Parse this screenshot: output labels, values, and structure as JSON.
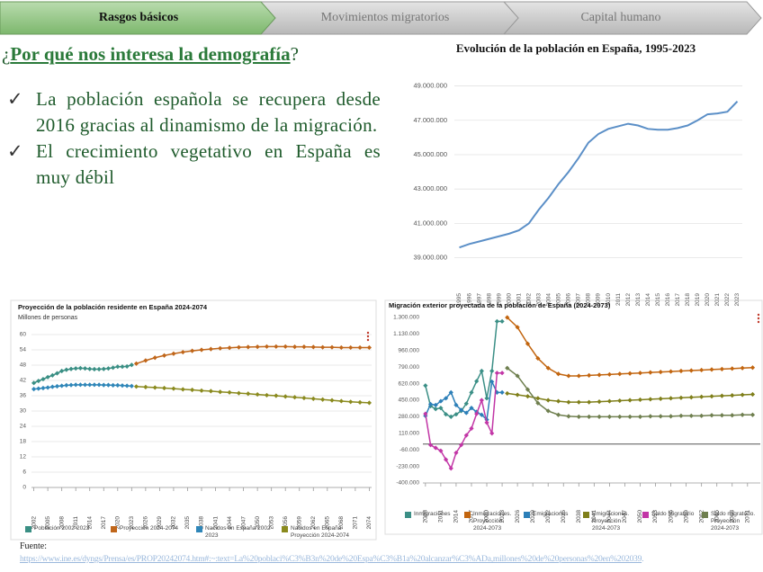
{
  "nav": [
    "Rasgos básicos",
    "Movimientos migratorios",
    "Capital humano"
  ],
  "heading": {
    "open": "¿",
    "text": "Por qué nos interesa la demografía",
    "close": "?"
  },
  "bullets": [
    "La población española se recupera desde 2016 gracias al dinamismo de la migración.",
    "El crecimiento vegetativo en España es muy débil"
  ],
  "chart_data": [
    {
      "type": "line",
      "title": "Evolución de la población en España, 1995-2023",
      "categories": [
        "1995",
        "1996",
        "1997",
        "1998",
        "1999",
        "2000",
        "2001",
        "2002",
        "2003",
        "2004",
        "2005",
        "2006",
        "2007",
        "2008",
        "2009",
        "2010",
        "2011",
        "2012",
        "2013",
        "2014",
        "2015",
        "2016",
        "2017",
        "2018",
        "2019",
        "2020",
        "2021",
        "2022",
        "2023"
      ],
      "values": [
        39600000,
        39800000,
        39950000,
        40100000,
        40250000,
        40400000,
        40600000,
        41000000,
        41800000,
        42500000,
        43300000,
        44000000,
        44800000,
        45700000,
        46200000,
        46500000,
        46650000,
        46800000,
        46700000,
        46500000,
        46450000,
        46450000,
        46550000,
        46700000,
        47000000,
        47350000,
        47400000,
        47500000,
        48100000
      ],
      "color": "#5b8fc7",
      "ylim": [
        38300000,
        49500000
      ],
      "yticks": [
        {
          "value": 39000000,
          "label": "39.000.000"
        },
        {
          "value": 41000000,
          "label": "41.000.000"
        },
        {
          "value": 43000000,
          "label": "43.000.000"
        },
        {
          "value": 45000000,
          "label": "45.000.000"
        },
        {
          "value": 47000000,
          "label": "47.000.000"
        },
        {
          "value": 49000000,
          "label": "49.000.000"
        }
      ],
      "grid": true
    },
    {
      "type": "line",
      "title": "Proyección de la población residente en España 2024-2074",
      "subtitle": "Millones de personas",
      "xlim": [
        2001.5,
        2074.5
      ],
      "xticks": [
        2002,
        2005,
        2008,
        2011,
        2014,
        2017,
        2020,
        2023,
        2026,
        2029,
        2032,
        2035,
        2038,
        2041,
        2044,
        2047,
        2050,
        2053,
        2056,
        2059,
        2062,
        2065,
        2068,
        2071,
        2074
      ],
      "ylim": [
        0,
        60
      ],
      "yticks": [
        0,
        6,
        12,
        18,
        24,
        30,
        36,
        42,
        48,
        54,
        60
      ],
      "grid": true,
      "marker": "diamond",
      "series": [
        {
          "name": "Población 2002-2023",
          "color": "#3a8f84",
          "x": [
            2002,
            2003,
            2004,
            2005,
            2006,
            2007,
            2008,
            2009,
            2010,
            2011,
            2012,
            2013,
            2014,
            2015,
            2016,
            2017,
            2018,
            2019,
            2020,
            2021,
            2022,
            2023
          ],
          "values": [
            41.0,
            41.8,
            42.5,
            43.3,
            44.0,
            44.8,
            45.7,
            46.2,
            46.5,
            46.7,
            46.8,
            46.7,
            46.5,
            46.4,
            46.4,
            46.5,
            46.7,
            47.0,
            47.4,
            47.4,
            47.5,
            48.1
          ]
        },
        {
          "name": "Proyección 2024-2074",
          "color": "#c0661a",
          "x": [
            2024,
            2026,
            2028,
            2030,
            2032,
            2034,
            2036,
            2038,
            2040,
            2042,
            2044,
            2046,
            2048,
            2050,
            2052,
            2054,
            2056,
            2058,
            2060,
            2062,
            2064,
            2066,
            2068,
            2070,
            2072,
            2074
          ],
          "values": [
            48.6,
            49.8,
            50.9,
            51.8,
            52.5,
            53.1,
            53.6,
            54.0,
            54.3,
            54.6,
            54.8,
            55.0,
            55.1,
            55.2,
            55.3,
            55.3,
            55.3,
            55.2,
            55.2,
            55.1,
            55.0,
            55.0,
            54.9,
            54.9,
            54.9,
            54.9
          ]
        },
        {
          "name": "Nacidos en España 2002-2023",
          "color": "#2f86b8",
          "x": [
            2002,
            2003,
            2004,
            2005,
            2006,
            2007,
            2008,
            2009,
            2010,
            2011,
            2012,
            2013,
            2014,
            2015,
            2016,
            2017,
            2018,
            2019,
            2020,
            2021,
            2022,
            2023
          ],
          "values": [
            38.6,
            38.8,
            39.0,
            39.2,
            39.5,
            39.7,
            39.9,
            40.1,
            40.2,
            40.3,
            40.3,
            40.3,
            40.3,
            40.3,
            40.3,
            40.2,
            40.2,
            40.1,
            40.1,
            40.0,
            39.9,
            39.8
          ]
        },
        {
          "name": "Nacidos en España Proyección 2024-2074",
          "color": "#8a8a1e",
          "x": [
            2024,
            2026,
            2028,
            2030,
            2032,
            2034,
            2036,
            2038,
            2040,
            2042,
            2044,
            2046,
            2048,
            2050,
            2052,
            2054,
            2056,
            2058,
            2060,
            2062,
            2064,
            2066,
            2068,
            2070,
            2072,
            2074
          ],
          "values": [
            39.6,
            39.4,
            39.2,
            39.0,
            38.8,
            38.5,
            38.3,
            38.0,
            37.8,
            37.5,
            37.3,
            37.0,
            36.8,
            36.5,
            36.2,
            36.0,
            35.7,
            35.4,
            35.1,
            34.8,
            34.5,
            34.2,
            33.9,
            33.6,
            33.4,
            33.2
          ]
        }
      ]
    },
    {
      "type": "line",
      "title": "Migración exterior proyectada de la población de España (2024-2073)",
      "xlim": [
        2007.5,
        2073.5
      ],
      "xticks": [
        2008,
        2011,
        2014,
        2017,
        2020,
        2023,
        2026,
        2029,
        2032,
        2035,
        2038,
        2041,
        2044,
        2047,
        2050,
        2053,
        2056,
        2059,
        2062,
        2065,
        2068,
        2071
      ],
      "ylim": [
        -400000,
        1300000
      ],
      "yticks": [
        {
          "value": -400000,
          "label": "-400.000"
        },
        {
          "value": -230000,
          "label": "-230.000"
        },
        {
          "value": -60000,
          "label": "-60.000"
        },
        {
          "value": 110000,
          "label": "110.000"
        },
        {
          "value": 280000,
          "label": "280.000"
        },
        {
          "value": 450000,
          "label": "450.000"
        },
        {
          "value": 620000,
          "label": "620.000"
        },
        {
          "value": 790000,
          "label": "790.000"
        },
        {
          "value": 960000,
          "label": "960.000"
        },
        {
          "value": 1130000,
          "label": "1.130.000"
        },
        {
          "value": 1300000,
          "label": "1.300.000"
        }
      ],
      "grid": false,
      "marker": "diamond",
      "series": [
        {
          "name": "Inmigraciones",
          "color": "#3b8f86",
          "x": [
            2008,
            2009,
            2010,
            2011,
            2012,
            2013,
            2014,
            2015,
            2016,
            2017,
            2018,
            2019,
            2020,
            2021,
            2022,
            2023
          ],
          "values": [
            600000,
            390000,
            360000,
            370000,
            305000,
            280000,
            305000,
            340000,
            415000,
            530000,
            645000,
            750000,
            470000,
            750000,
            1260000,
            1260000
          ]
        },
        {
          "name": "Inmigraciones. Proyección 2024-2073",
          "color": "#c2650f",
          "x": [
            2024,
            2026,
            2028,
            2030,
            2032,
            2034,
            2036,
            2038,
            2040,
            2042,
            2044,
            2046,
            2048,
            2050,
            2052,
            2054,
            2056,
            2058,
            2060,
            2062,
            2064,
            2066,
            2068,
            2070,
            2072
          ],
          "values": [
            1300000,
            1200000,
            1030000,
            880000,
            780000,
            720000,
            700000,
            700000,
            705000,
            710000,
            715000,
            720000,
            725000,
            730000,
            735000,
            740000,
            745000,
            750000,
            755000,
            760000,
            765000,
            770000,
            775000,
            780000,
            785000
          ]
        },
        {
          "name": "Emigraciones",
          "color": "#2c7fb8",
          "x": [
            2008,
            2009,
            2010,
            2011,
            2012,
            2013,
            2014,
            2015,
            2016,
            2017,
            2018,
            2019,
            2020,
            2021,
            2022,
            2023
          ],
          "values": [
            290000,
            410000,
            400000,
            440000,
            470000,
            530000,
            400000,
            350000,
            320000,
            370000,
            330000,
            300000,
            250000,
            640000,
            530000,
            530000
          ]
        },
        {
          "name": "Emigraciones. Proyección 2024-2073",
          "color": "#7f7f1a",
          "x": [
            2024,
            2026,
            2028,
            2030,
            2032,
            2034,
            2036,
            2038,
            2040,
            2042,
            2044,
            2046,
            2048,
            2050,
            2052,
            2054,
            2056,
            2058,
            2060,
            2062,
            2064,
            2066,
            2068,
            2070,
            2072
          ],
          "values": [
            520000,
            505000,
            490000,
            470000,
            450000,
            440000,
            430000,
            430000,
            430000,
            435000,
            440000,
            445000,
            450000,
            455000,
            460000,
            465000,
            470000,
            475000,
            480000,
            485000,
            490000,
            495000,
            500000,
            505000,
            510000
          ]
        },
        {
          "name": "Saldo Migratorio",
          "color": "#c236a6",
          "x": [
            2008,
            2009,
            2010,
            2011,
            2012,
            2013,
            2014,
            2015,
            2016,
            2017,
            2018,
            2019,
            2020,
            2021,
            2022,
            2023
          ],
          "values": [
            310000,
            -10000,
            -40000,
            -70000,
            -160000,
            -250000,
            -90000,
            -10000,
            90000,
            160000,
            310000,
            450000,
            220000,
            110000,
            730000,
            730000
          ]
        },
        {
          "name": "Saldo migratorio. Proyección 2024-2073",
          "color": "#6f7f4f",
          "x": [
            2024,
            2026,
            2028,
            2030,
            2032,
            2034,
            2036,
            2038,
            2040,
            2042,
            2044,
            2046,
            2048,
            2050,
            2052,
            2054,
            2056,
            2058,
            2060,
            2062,
            2064,
            2066,
            2068,
            2070,
            2072
          ],
          "values": [
            780000,
            700000,
            560000,
            420000,
            340000,
            300000,
            285000,
            280000,
            280000,
            280000,
            280000,
            280000,
            280000,
            280000,
            285000,
            285000,
            285000,
            290000,
            290000,
            290000,
            295000,
            295000,
            295000,
            300000,
            300000
          ]
        }
      ]
    }
  ],
  "source": {
    "label": "Fuente:",
    "url": "https://www.ine.es/dyngs/Prensa/es/PROP20242074.htm#:~:text=La%20poblaci%C3%B3n%20de%20Espa%C3%B1a%20alcanzar%C3%ADa,millones%20de%20personas%20en%202039",
    "end": "."
  }
}
